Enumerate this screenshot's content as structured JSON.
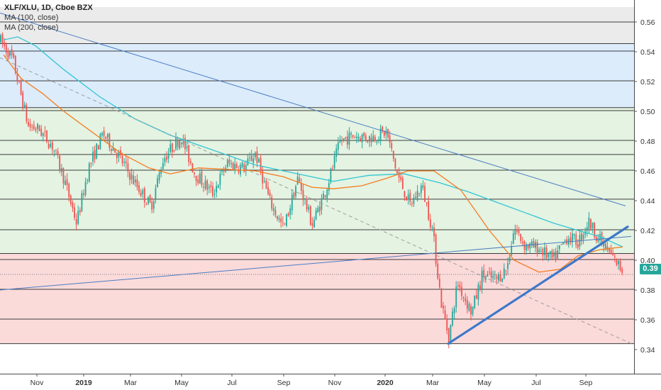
{
  "legend": {
    "title": "XLF/XLU, 1D, Cboe BZX",
    "ma100": "MA (100, close)",
    "ma200": "MA (200, close)"
  },
  "last_price_label": "0.39",
  "colors": {
    "up": "#26a69a",
    "down": "#ef5350",
    "ma100": "#f57c1f",
    "ma200": "#32c6d4",
    "trend": "#4a7dc2",
    "thick_trend": "#3d78c9",
    "dashed": "#9e9e9e",
    "zone_gray": "#ebebeb",
    "zone_blue": "#dcecfb",
    "zone_green": "#e4f3e2",
    "zone_red": "#fbdada",
    "badge": "#26a69a"
  },
  "chart_data": {
    "type": "candlestick",
    "title": "XLF/XLU, 1D, Cboe BZX",
    "ylim": [
      0.332,
      0.57
    ],
    "x_ticks": [
      "Nov",
      "2019",
      "Mar",
      "May",
      "Jul",
      "Sep",
      "Nov",
      "2020",
      "Mar",
      "May",
      "Jul",
      "Sep"
    ],
    "y_ticks": [
      0.34,
      0.36,
      0.38,
      0.4,
      0.42,
      0.44,
      0.46,
      0.48,
      0.5,
      0.52,
      0.54,
      0.56
    ],
    "last_price": 0.39,
    "grid": true,
    "horizontal_levels": [
      0.56,
      0.5455,
      0.5405,
      0.5205,
      0.5025,
      0.5005,
      0.4805,
      0.471,
      0.4605,
      0.441,
      0.4205,
      0.4045,
      0.4005,
      0.3805,
      0.3605,
      0.344
    ],
    "zones": [
      {
        "name": "gray",
        "from": 0.5455,
        "to": 0.57
      },
      {
        "name": "blue",
        "from": 0.5025,
        "to": 0.5455
      },
      {
        "name": "green",
        "from": 0.4045,
        "to": 0.5025
      },
      {
        "name": "red",
        "from": 0.344,
        "to": 0.4045
      }
    ],
    "price_path": [
      [
        0,
        0.548
      ],
      [
        18,
        0.535
      ],
      [
        40,
        0.49
      ],
      [
        55,
        0.488
      ],
      [
        75,
        0.476
      ],
      [
        90,
        0.455
      ],
      [
        108,
        0.425
      ],
      [
        125,
        0.462
      ],
      [
        145,
        0.485
      ],
      [
        165,
        0.472
      ],
      [
        190,
        0.452
      ],
      [
        213,
        0.436
      ],
      [
        230,
        0.468
      ],
      [
        255,
        0.483
      ],
      [
        275,
        0.458
      ],
      [
        300,
        0.445
      ],
      [
        320,
        0.465
      ],
      [
        345,
        0.462
      ],
      [
        360,
        0.472
      ],
      [
        380,
        0.44
      ],
      [
        400,
        0.421
      ],
      [
        420,
        0.455
      ],
      [
        440,
        0.424
      ],
      [
        460,
        0.448
      ],
      [
        480,
        0.48
      ],
      [
        500,
        0.484
      ],
      [
        520,
        0.482
      ],
      [
        545,
        0.486
      ],
      [
        560,
        0.458
      ],
      [
        578,
        0.437
      ],
      [
        595,
        0.45
      ],
      [
        610,
        0.42
      ],
      [
        622,
        0.372
      ],
      [
        633,
        0.348
      ],
      [
        645,
        0.385
      ],
      [
        665,
        0.365
      ],
      [
        680,
        0.39
      ],
      [
        700,
        0.387
      ],
      [
        715,
        0.395
      ],
      [
        725,
        0.422
      ],
      [
        740,
        0.41
      ],
      [
        760,
        0.408
      ],
      [
        780,
        0.4
      ],
      [
        800,
        0.416
      ],
      [
        815,
        0.412
      ],
      [
        830,
        0.426
      ],
      [
        845,
        0.414
      ],
      [
        862,
        0.403
      ],
      [
        878,
        0.393
      ]
    ],
    "ma100": [
      [
        5,
        0.538
      ],
      [
        30,
        0.522
      ],
      [
        60,
        0.512
      ],
      [
        90,
        0.5
      ],
      [
        130,
        0.486
      ],
      [
        170,
        0.472
      ],
      [
        210,
        0.462
      ],
      [
        240,
        0.458
      ],
      [
        280,
        0.462
      ],
      [
        320,
        0.461
      ],
      [
        360,
        0.46
      ],
      [
        400,
        0.456
      ],
      [
        440,
        0.449
      ],
      [
        470,
        0.448
      ],
      [
        510,
        0.45
      ],
      [
        545,
        0.455
      ],
      [
        575,
        0.46
      ],
      [
        612,
        0.46
      ],
      [
        650,
        0.447
      ],
      [
        690,
        0.42
      ],
      [
        725,
        0.4
      ],
      [
        760,
        0.392
      ],
      [
        790,
        0.394
      ],
      [
        815,
        0.403
      ],
      [
        845,
        0.407
      ],
      [
        878,
        0.409
      ]
    ],
    "ma200": [
      [
        5,
        0.548
      ],
      [
        25,
        0.55
      ],
      [
        50,
        0.544
      ],
      [
        90,
        0.528
      ],
      [
        140,
        0.51
      ],
      [
        190,
        0.495
      ],
      [
        240,
        0.484
      ],
      [
        300,
        0.474
      ],
      [
        360,
        0.464
      ],
      [
        420,
        0.458
      ],
      [
        470,
        0.453
      ],
      [
        520,
        0.457
      ],
      [
        570,
        0.458
      ],
      [
        620,
        0.452
      ],
      [
        660,
        0.446
      ],
      [
        700,
        0.439
      ],
      [
        740,
        0.432
      ],
      [
        780,
        0.425
      ],
      [
        815,
        0.42
      ],
      [
        845,
        0.416
      ],
      [
        878,
        0.409
      ]
    ],
    "trendlines": [
      {
        "name": "descending-resistance",
        "from": [
          0,
          0.566
        ],
        "to": [
          882,
          0.4365
        ],
        "style": "solid"
      },
      {
        "name": "long-support",
        "from": [
          0,
          0.38
        ],
        "to": [
          890,
          0.416
        ],
        "style": "solid"
      },
      {
        "name": "dashed-decline",
        "from": [
          0,
          0.536
        ],
        "to": [
          890,
          0.344
        ],
        "style": "dashed"
      },
      {
        "name": "rising-support",
        "from": [
          632,
          0.344
        ],
        "to": [
          885,
          0.4225
        ],
        "style": "thick"
      }
    ]
  }
}
